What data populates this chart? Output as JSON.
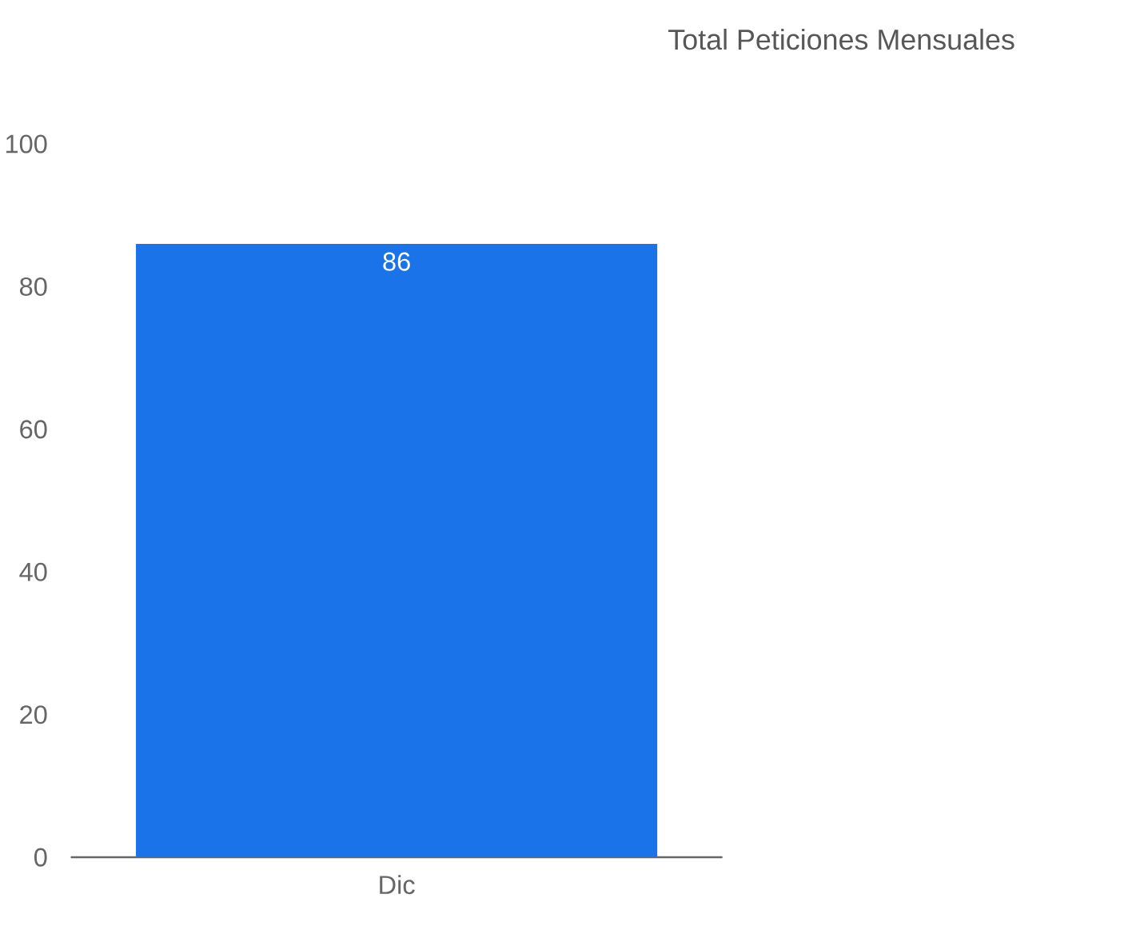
{
  "chart_data": {
    "type": "bar",
    "title": "Total Peticiones Mensuales",
    "categories": [
      "Dic"
    ],
    "values": [
      86
    ],
    "color": "#1a73e8",
    "ylim": [
      0,
      100
    ],
    "yticks": [
      0,
      20,
      40,
      60,
      80,
      100
    ],
    "data_labels": true,
    "grid": false
  }
}
